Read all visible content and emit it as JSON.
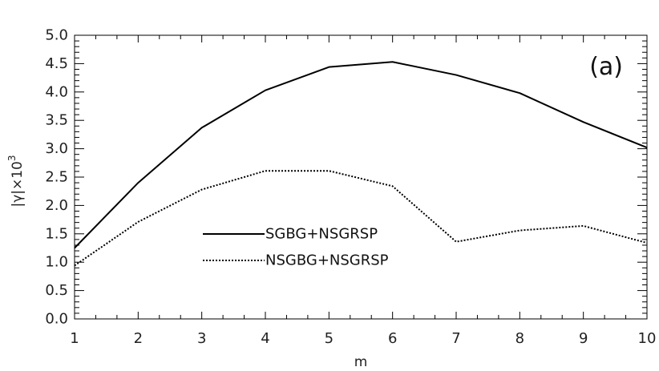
{
  "chart_data": {
    "type": "line",
    "panel_label": "(a)",
    "xlabel": "m",
    "ylabel": "|γ|×10",
    "ylabel_exponent": "3",
    "x": [
      1,
      2,
      3,
      4,
      5,
      6,
      7,
      8,
      9,
      10
    ],
    "xlim": [
      1,
      10
    ],
    "ylim": [
      0,
      5
    ],
    "x_ticks": [
      "1",
      "2",
      "3",
      "4",
      "5",
      "6",
      "7",
      "8",
      "9",
      "10"
    ],
    "y_ticks": [
      "0.0",
      "0.5",
      "1.0",
      "1.5",
      "2.0",
      "2.5",
      "3.0",
      "3.5",
      "4.0",
      "4.5",
      "5.0"
    ],
    "grid": false,
    "legend_position": "center-left",
    "series": [
      {
        "name": "SGBG+NSGRSP",
        "style": "solid",
        "color": "#000000",
        "values": [
          1.25,
          2.4,
          3.37,
          4.03,
          4.44,
          4.53,
          4.3,
          3.98,
          3.47,
          3.02
        ]
      },
      {
        "name": "NSGBG+NSGRSP",
        "style": "dotted",
        "color": "#000000",
        "values": [
          0.94,
          1.71,
          2.28,
          2.61,
          2.61,
          2.34,
          1.36,
          1.56,
          1.64,
          1.34
        ]
      }
    ]
  }
}
